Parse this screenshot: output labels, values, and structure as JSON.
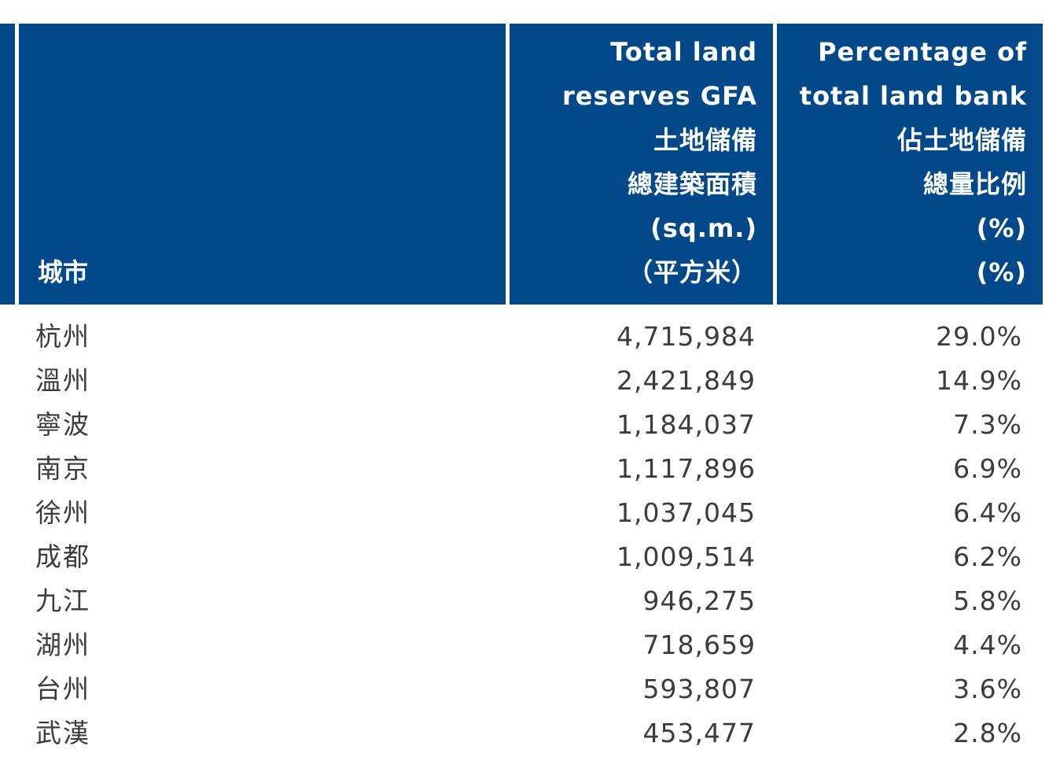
{
  "table": {
    "headers": {
      "city": "城市",
      "gfa": [
        "Total land",
        "reserves GFA",
        "土地儲備",
        "總建築面積",
        "(sq.m.)",
        "（平方米）"
      ],
      "pct": [
        "Percentage of",
        "total land bank",
        "佔土地儲備",
        "總量比例",
        "(%)",
        "(%)"
      ]
    },
    "rows": [
      {
        "city": "杭州",
        "gfa": "4,715,984",
        "pct": "29.0%"
      },
      {
        "city": "溫州",
        "gfa": "2,421,849",
        "pct": "14.9%"
      },
      {
        "city": "寧波",
        "gfa": "1,184,037",
        "pct": "7.3%"
      },
      {
        "city": "南京",
        "gfa": "1,117,896",
        "pct": "6.9%"
      },
      {
        "city": "徐州",
        "gfa": "1,037,045",
        "pct": "6.4%"
      },
      {
        "city": "成都",
        "gfa": "1,009,514",
        "pct": "6.2%"
      },
      {
        "city": "九江",
        "gfa": "946,275",
        "pct": "5.8%"
      },
      {
        "city": "湖州",
        "gfa": "718,659",
        "pct": "4.4%"
      },
      {
        "city": "台州",
        "gfa": "593,807",
        "pct": "3.6%"
      },
      {
        "city": "武漢",
        "gfa": "453,477",
        "pct": "2.8%"
      }
    ]
  }
}
